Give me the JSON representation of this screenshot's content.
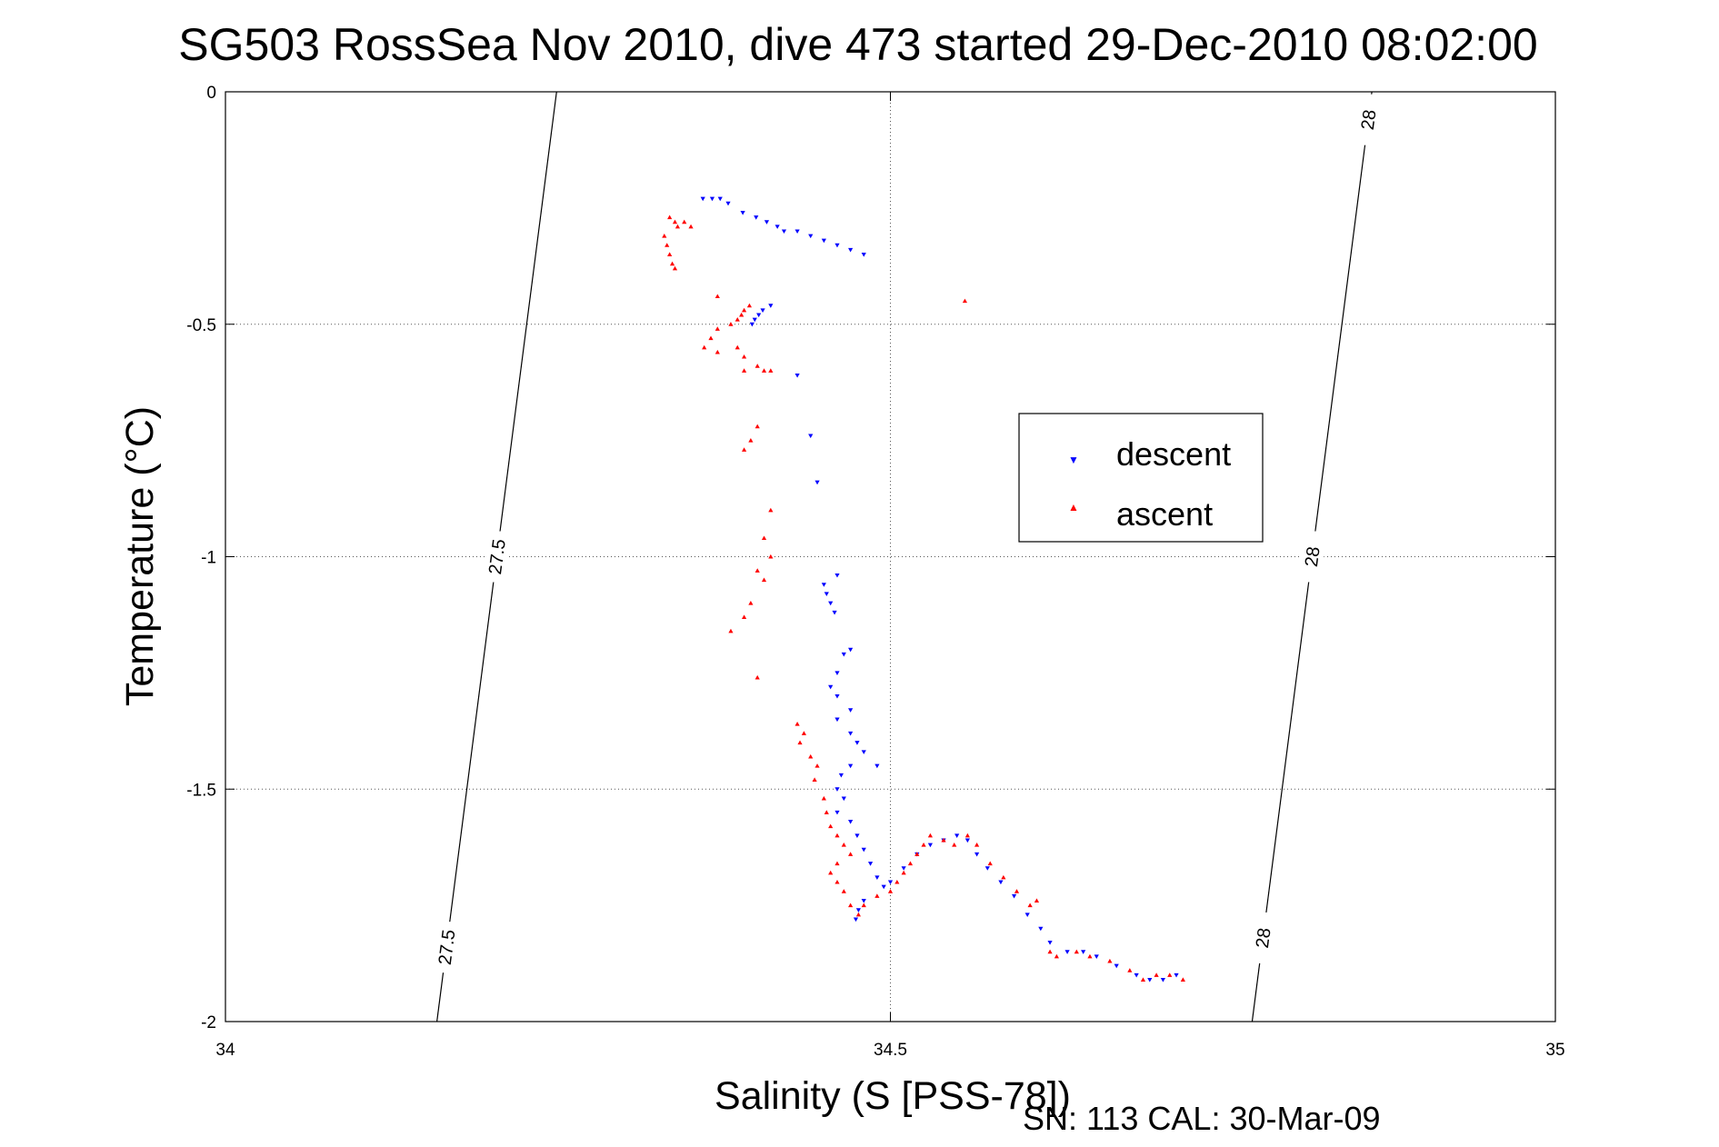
{
  "chart_data": {
    "type": "scatter",
    "title": "SG503 RossSea Nov 2010, dive 473 started 29-Dec-2010 08:02:00",
    "xlabel": "Salinity (S [PSS-78])",
    "ylabel": "Temperature (°C)",
    "footer": "SN: 113  CAL: 30-Mar-09",
    "xlim": [
      34,
      35
    ],
    "ylim": [
      -2,
      0
    ],
    "xticks": [
      "34",
      "34.5",
      "35"
    ],
    "yticks": [
      "0",
      "-0.5",
      "-1",
      "-1.5",
      "-2"
    ],
    "grid": true,
    "legend_position": "center-right",
    "density_contours": [
      {
        "label": "27.5",
        "points": [
          [
            34.159,
            -2.0
          ],
          [
            34.249,
            0.0
          ]
        ],
        "label_values": [
          "27.5",
          "27.5"
        ]
      },
      {
        "label": "28",
        "points": [
          [
            34.772,
            -2.0
          ],
          [
            34.862,
            0.0
          ]
        ],
        "label_values": [
          "28",
          "28",
          "28"
        ]
      }
    ],
    "series": [
      {
        "name": "descent",
        "color": "#0000ff",
        "marker": "triangle-down",
        "points": [
          [
            34.359,
            -0.23
          ],
          [
            34.366,
            -0.23
          ],
          [
            34.372,
            -0.23
          ],
          [
            34.378,
            -0.24
          ],
          [
            34.389,
            -0.26
          ],
          [
            34.399,
            -0.27
          ],
          [
            34.407,
            -0.28
          ],
          [
            34.415,
            -0.29
          ],
          [
            34.42,
            -0.3
          ],
          [
            34.43,
            -0.3
          ],
          [
            34.44,
            -0.31
          ],
          [
            34.45,
            -0.32
          ],
          [
            34.46,
            -0.33
          ],
          [
            34.47,
            -0.34
          ],
          [
            34.48,
            -0.35
          ],
          [
            34.41,
            -0.46
          ],
          [
            34.404,
            -0.47
          ],
          [
            34.401,
            -0.48
          ],
          [
            34.398,
            -0.49
          ],
          [
            34.396,
            -0.5
          ],
          [
            34.43,
            -0.61
          ],
          [
            34.44,
            -0.74
          ],
          [
            34.445,
            -0.84
          ],
          [
            34.46,
            -1.04
          ],
          [
            34.45,
            -1.06
          ],
          [
            34.452,
            -1.08
          ],
          [
            34.455,
            -1.1
          ],
          [
            34.458,
            -1.12
          ],
          [
            34.47,
            -1.2
          ],
          [
            34.465,
            -1.21
          ],
          [
            34.46,
            -1.25
          ],
          [
            34.455,
            -1.28
          ],
          [
            34.46,
            -1.3
          ],
          [
            34.47,
            -1.33
          ],
          [
            34.46,
            -1.35
          ],
          [
            34.47,
            -1.38
          ],
          [
            34.475,
            -1.4
          ],
          [
            34.48,
            -1.42
          ],
          [
            34.47,
            -1.45
          ],
          [
            34.49,
            -1.45
          ],
          [
            34.463,
            -1.47
          ],
          [
            34.46,
            -1.5
          ],
          [
            34.465,
            -1.52
          ],
          [
            34.46,
            -1.55
          ],
          [
            34.47,
            -1.57
          ],
          [
            34.475,
            -1.6
          ],
          [
            34.48,
            -1.63
          ],
          [
            34.485,
            -1.66
          ],
          [
            34.49,
            -1.69
          ],
          [
            34.495,
            -1.71
          ],
          [
            34.5,
            -1.7
          ],
          [
            34.51,
            -1.67
          ],
          [
            34.52,
            -1.64
          ],
          [
            34.53,
            -1.62
          ],
          [
            34.54,
            -1.61
          ],
          [
            34.55,
            -1.6
          ],
          [
            34.558,
            -1.61
          ],
          [
            34.565,
            -1.64
          ],
          [
            34.573,
            -1.67
          ],
          [
            34.583,
            -1.7
          ],
          [
            34.593,
            -1.73
          ],
          [
            34.603,
            -1.77
          ],
          [
            34.613,
            -1.8
          ],
          [
            34.62,
            -1.83
          ],
          [
            34.633,
            -1.85
          ],
          [
            34.645,
            -1.85
          ],
          [
            34.655,
            -1.86
          ],
          [
            34.67,
            -1.88
          ],
          [
            34.685,
            -1.9
          ],
          [
            34.695,
            -1.91
          ],
          [
            34.705,
            -1.91
          ],
          [
            34.715,
            -1.9
          ],
          [
            34.48,
            -1.74
          ],
          [
            34.476,
            -1.76
          ],
          [
            34.474,
            -1.78
          ]
        ]
      },
      {
        "name": "ascent",
        "color": "#ff0000",
        "marker": "triangle-up",
        "points": [
          [
            34.334,
            -0.27
          ],
          [
            34.338,
            -0.28
          ],
          [
            34.34,
            -0.29
          ],
          [
            34.345,
            -0.28
          ],
          [
            34.35,
            -0.29
          ],
          [
            34.33,
            -0.31
          ],
          [
            34.332,
            -0.33
          ],
          [
            34.334,
            -0.35
          ],
          [
            34.336,
            -0.37
          ],
          [
            34.338,
            -0.38
          ],
          [
            34.556,
            -0.45
          ],
          [
            34.37,
            -0.44
          ],
          [
            34.394,
            -0.46
          ],
          [
            34.39,
            -0.47
          ],
          [
            34.388,
            -0.48
          ],
          [
            34.385,
            -0.49
          ],
          [
            34.38,
            -0.5
          ],
          [
            34.37,
            -0.51
          ],
          [
            34.365,
            -0.53
          ],
          [
            34.36,
            -0.55
          ],
          [
            34.37,
            -0.56
          ],
          [
            34.385,
            -0.55
          ],
          [
            34.39,
            -0.57
          ],
          [
            34.4,
            -0.59
          ],
          [
            34.405,
            -0.6
          ],
          [
            34.41,
            -0.6
          ],
          [
            34.39,
            -0.6
          ],
          [
            34.4,
            -0.72
          ],
          [
            34.395,
            -0.75
          ],
          [
            34.39,
            -0.77
          ],
          [
            34.41,
            -0.9
          ],
          [
            34.405,
            -0.96
          ],
          [
            34.41,
            -1.0
          ],
          [
            34.4,
            -1.03
          ],
          [
            34.405,
            -1.05
          ],
          [
            34.395,
            -1.1
          ],
          [
            34.39,
            -1.13
          ],
          [
            34.38,
            -1.16
          ],
          [
            34.4,
            -1.26
          ],
          [
            34.43,
            -1.36
          ],
          [
            34.435,
            -1.38
          ],
          [
            34.432,
            -1.4
          ],
          [
            34.44,
            -1.43
          ],
          [
            34.445,
            -1.45
          ],
          [
            34.443,
            -1.48
          ],
          [
            34.45,
            -1.52
          ],
          [
            34.452,
            -1.55
          ],
          [
            34.455,
            -1.58
          ],
          [
            34.46,
            -1.6
          ],
          [
            34.465,
            -1.62
          ],
          [
            34.47,
            -1.64
          ],
          [
            34.46,
            -1.66
          ],
          [
            34.455,
            -1.68
          ],
          [
            34.46,
            -1.7
          ],
          [
            34.465,
            -1.72
          ],
          [
            34.47,
            -1.75
          ],
          [
            34.476,
            -1.77
          ],
          [
            34.48,
            -1.75
          ],
          [
            34.49,
            -1.73
          ],
          [
            34.5,
            -1.72
          ],
          [
            34.505,
            -1.7
          ],
          [
            34.51,
            -1.68
          ],
          [
            34.515,
            -1.66
          ],
          [
            34.52,
            -1.64
          ],
          [
            34.525,
            -1.62
          ],
          [
            34.53,
            -1.6
          ],
          [
            34.54,
            -1.61
          ],
          [
            34.548,
            -1.62
          ],
          [
            34.558,
            -1.6
          ],
          [
            34.565,
            -1.62
          ],
          [
            34.575,
            -1.66
          ],
          [
            34.585,
            -1.69
          ],
          [
            34.595,
            -1.72
          ],
          [
            34.605,
            -1.75
          ],
          [
            34.61,
            -1.74
          ],
          [
            34.62,
            -1.85
          ],
          [
            34.625,
            -1.86
          ],
          [
            34.64,
            -1.85
          ],
          [
            34.65,
            -1.86
          ],
          [
            34.665,
            -1.87
          ],
          [
            34.68,
            -1.89
          ],
          [
            34.69,
            -1.91
          ],
          [
            34.7,
            -1.9
          ],
          [
            34.71,
            -1.9
          ],
          [
            34.72,
            -1.91
          ]
        ]
      }
    ]
  }
}
